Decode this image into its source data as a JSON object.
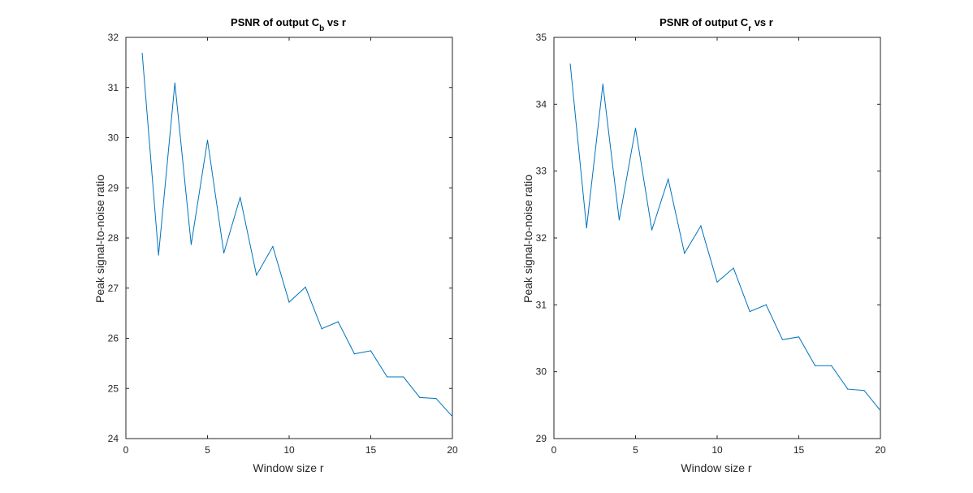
{
  "chart_data": [
    {
      "type": "line",
      "title": "PSNR of output C",
      "title_subscript": "b",
      "title_suffix": " vs r",
      "xlabel": "Window size r",
      "ylabel": "Peak signal-to-noise ratio",
      "xlim": [
        0,
        20
      ],
      "ylim": [
        24,
        32
      ],
      "xticks": [
        0,
        5,
        10,
        15,
        20
      ],
      "yticks": [
        24,
        25,
        26,
        27,
        28,
        29,
        30,
        31,
        32
      ],
      "grid": false,
      "line_color": "#0072BD",
      "x": [
        1,
        2,
        3,
        4,
        5,
        6,
        7,
        8,
        9,
        10,
        11,
        12,
        13,
        14,
        15,
        16,
        17,
        18,
        19,
        20
      ],
      "series": [
        {
          "values": [
            31.68,
            27.66,
            31.09,
            27.87,
            29.95,
            27.7,
            28.81,
            27.26,
            27.83,
            26.72,
            27.02,
            26.19,
            26.33,
            25.69,
            25.75,
            25.23,
            25.23,
            24.82,
            24.8,
            24.44
          ]
        }
      ]
    },
    {
      "type": "line",
      "title": "PSNR of output C",
      "title_subscript": "r",
      "title_suffix": " vs r",
      "xlabel": "Window size r",
      "ylabel": "Peak signal-to-noise ratio",
      "xlim": [
        0,
        20
      ],
      "ylim": [
        29,
        35
      ],
      "xticks": [
        0,
        5,
        10,
        15,
        20
      ],
      "yticks": [
        29,
        30,
        31,
        32,
        33,
        34,
        35
      ],
      "grid": false,
      "line_color": "#0072BD",
      "x": [
        1,
        2,
        3,
        4,
        5,
        6,
        7,
        8,
        9,
        10,
        11,
        12,
        13,
        14,
        15,
        16,
        17,
        18,
        19,
        20
      ],
      "series": [
        {
          "values": [
            34.6,
            32.15,
            34.3,
            32.27,
            33.64,
            32.12,
            32.88,
            31.77,
            32.18,
            31.34,
            31.55,
            30.9,
            31.0,
            30.48,
            30.52,
            30.09,
            30.09,
            29.74,
            29.72,
            29.42
          ]
        }
      ]
    }
  ]
}
